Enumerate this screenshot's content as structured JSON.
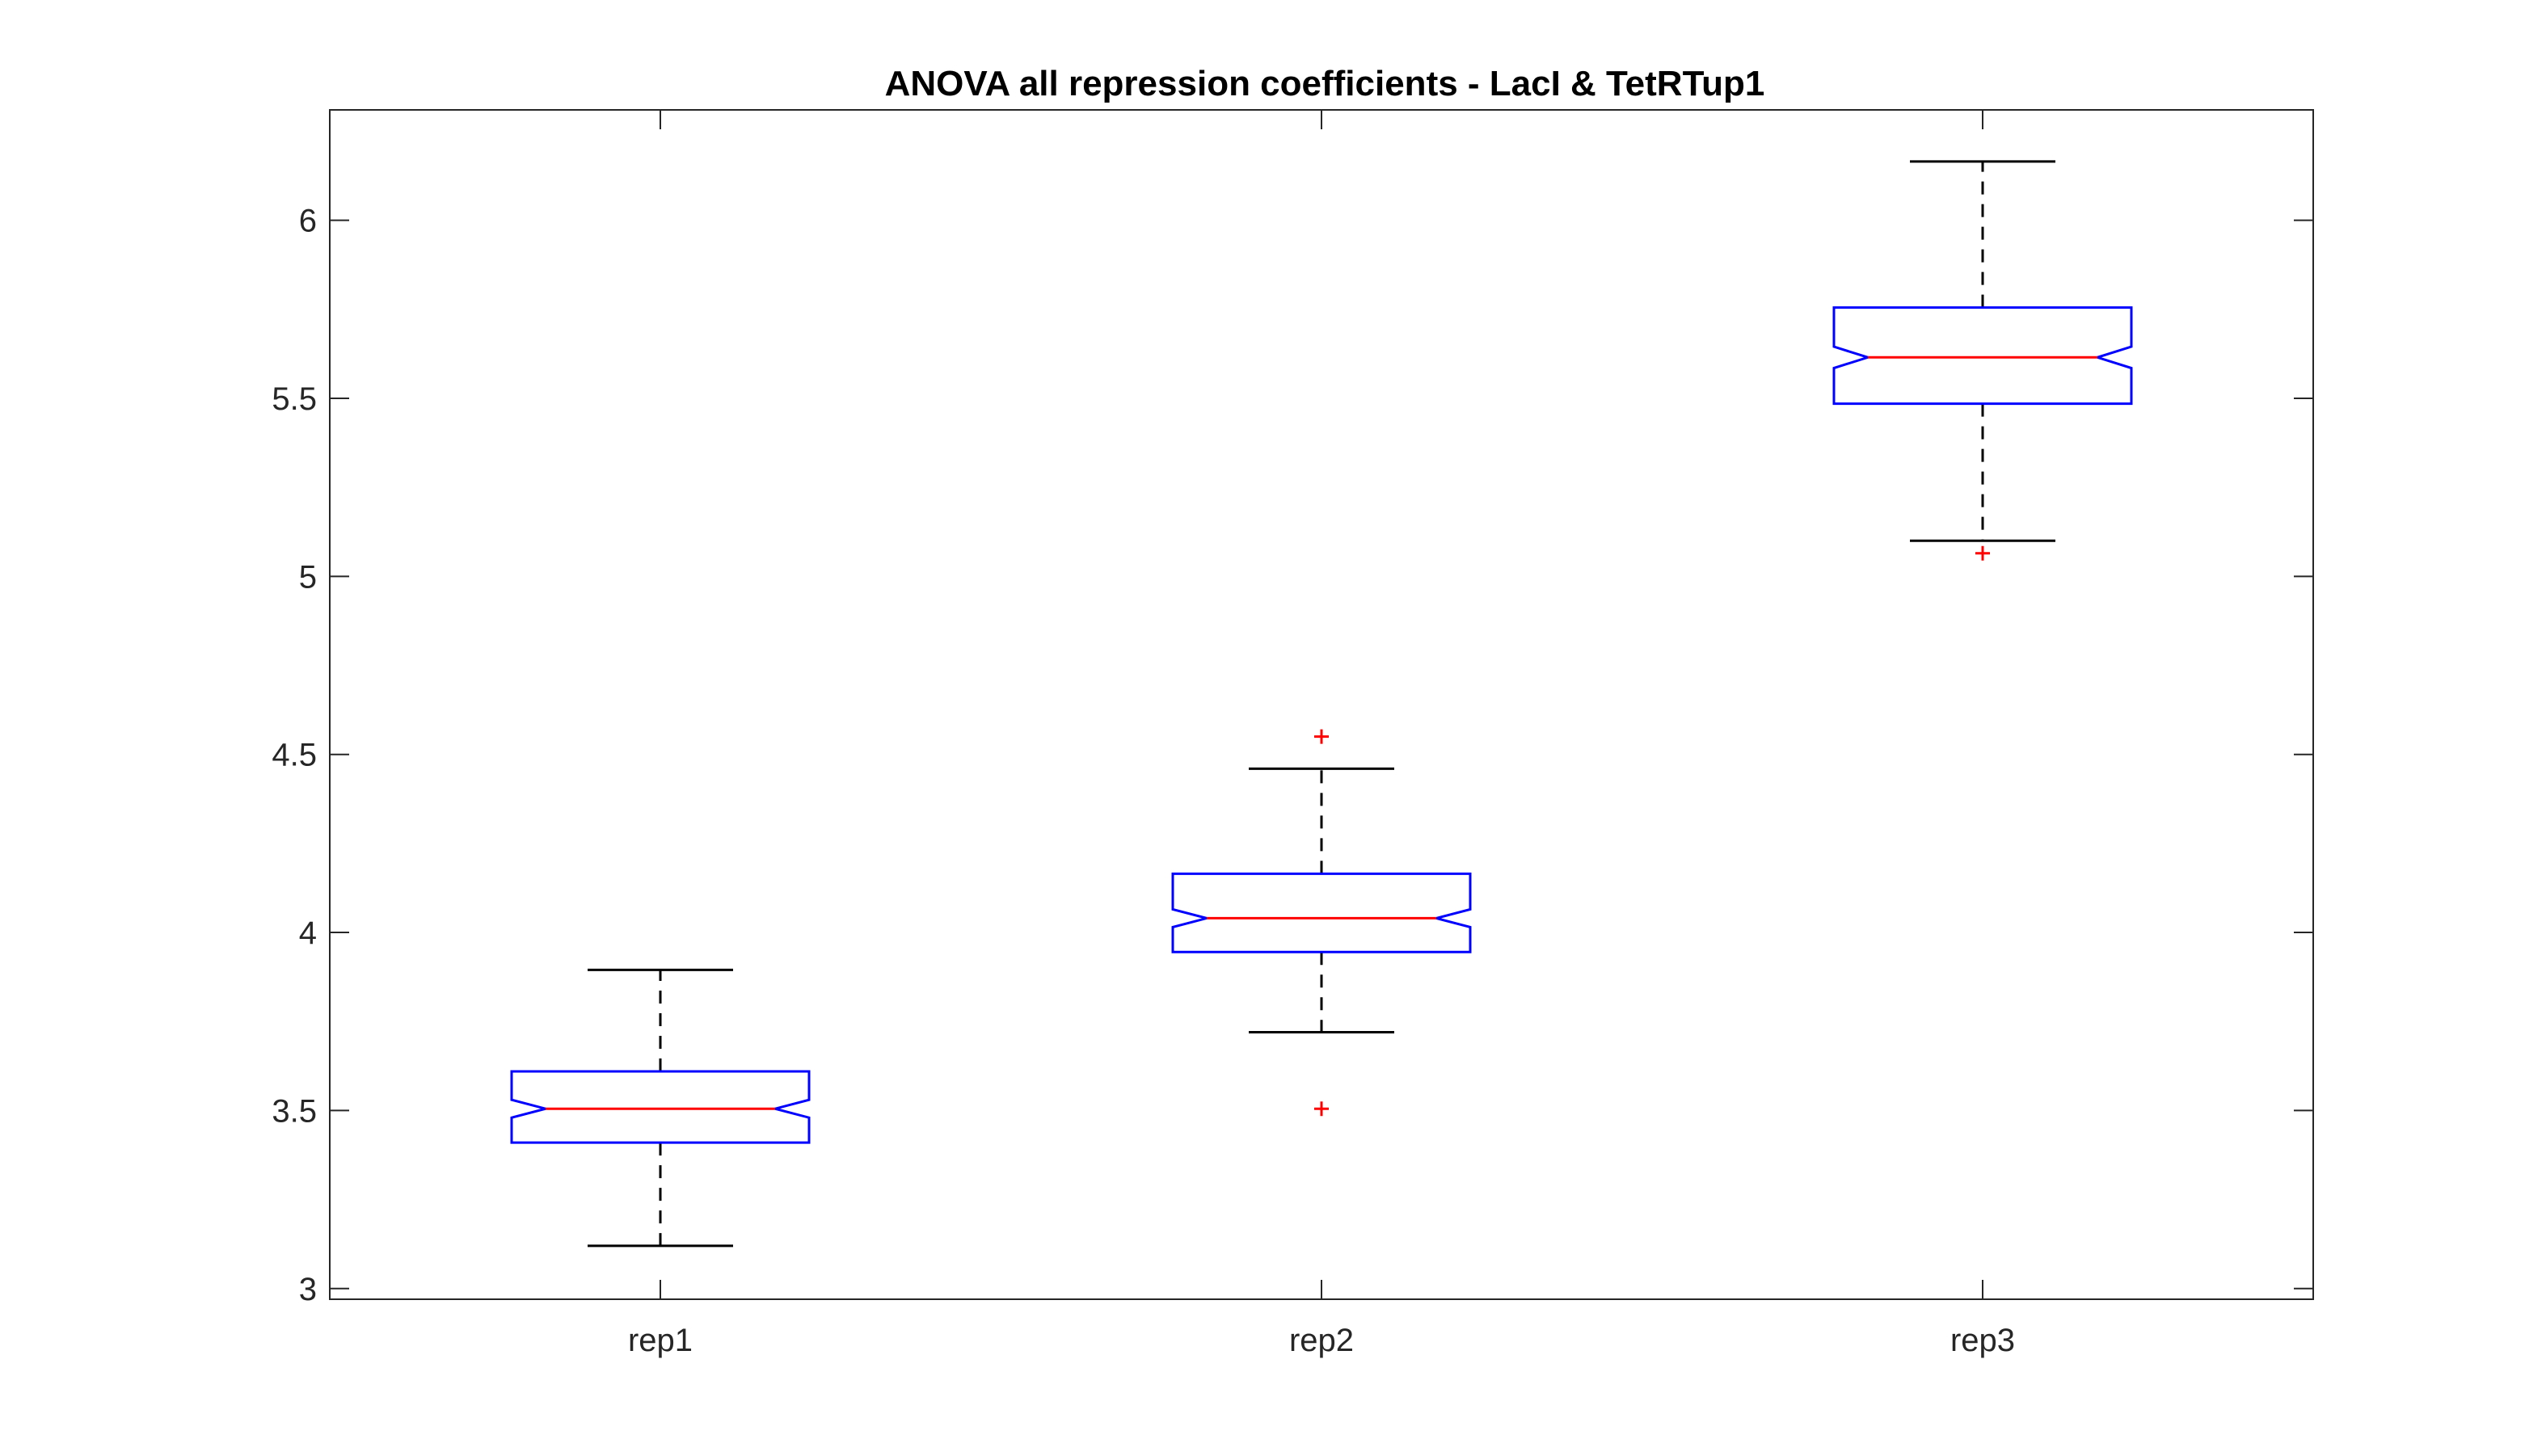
{
  "chart_data": {
    "type": "box",
    "title": "ANOVA all repression coefficients - LacI & TetRTup1",
    "xlabel": "",
    "ylabel": "",
    "categories": [
      "rep1",
      "rep2",
      "rep3"
    ],
    "ylim": [
      2.97,
      6.31
    ],
    "yticks": [
      3,
      3.5,
      4,
      4.5,
      5,
      5.5,
      6
    ],
    "ytick_labels": [
      "3",
      "3.5",
      "4",
      "4.5",
      "5",
      "5.5",
      "6"
    ],
    "notched": true,
    "grid": false,
    "boxes": [
      {
        "category": "rep1",
        "whisker_low": 3.12,
        "q1": 3.41,
        "median": 3.505,
        "q3": 3.61,
        "whisker_high": 3.895,
        "notch_low": 3.48,
        "notch_high": 3.53,
        "outliers": []
      },
      {
        "category": "rep2",
        "whisker_low": 3.72,
        "q1": 3.945,
        "median": 4.04,
        "q3": 4.165,
        "whisker_high": 4.46,
        "notch_low": 4.015,
        "notch_high": 4.065,
        "outliers": [
          3.505,
          4.55
        ]
      },
      {
        "category": "rep3",
        "whisker_low": 5.1,
        "q1": 5.485,
        "median": 5.615,
        "q3": 5.755,
        "whisker_high": 6.165,
        "notch_low": 5.585,
        "notch_high": 5.645,
        "outliers": [
          5.065
        ]
      }
    ],
    "colors": {
      "box": "#0000ff",
      "median": "#ff0000",
      "whisker": "#000000",
      "outlier": "#ff0000",
      "axes": "#262626"
    }
  }
}
